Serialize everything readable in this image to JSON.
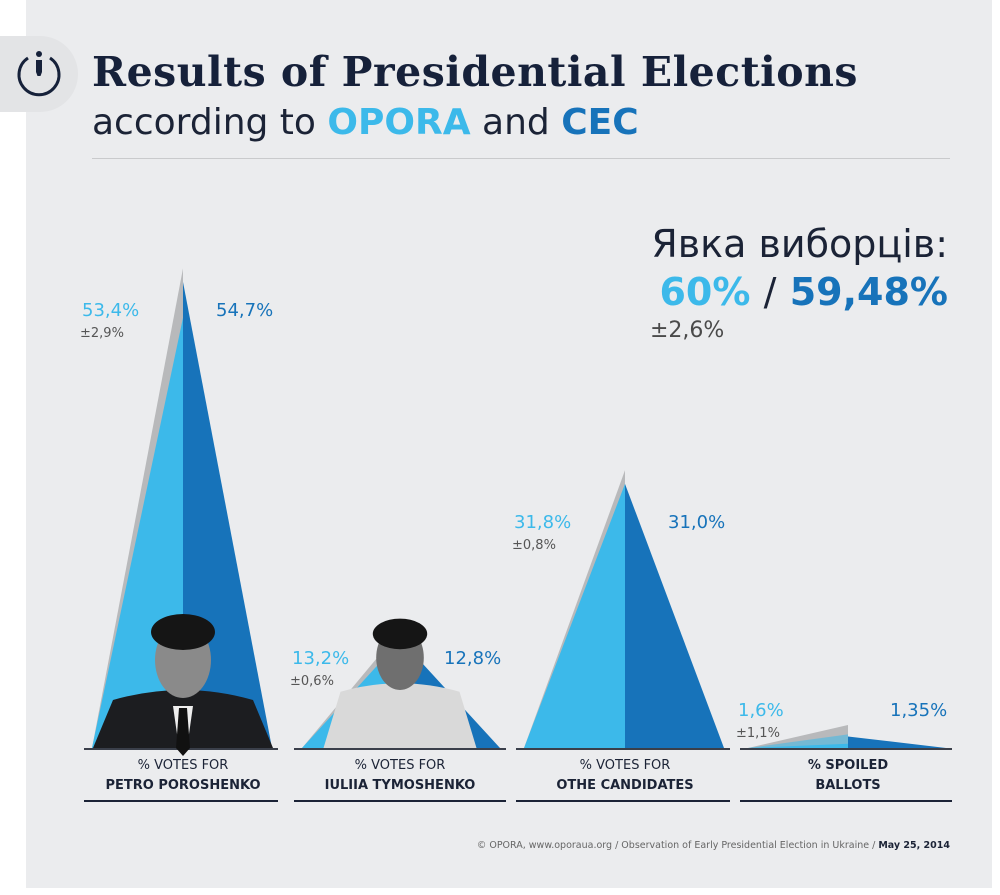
{
  "header": {
    "title": "Results of Presidential Elections",
    "subtitle_prefix": "according to",
    "subtitle_opora": "OPORA",
    "subtitle_and": "and",
    "subtitle_cec": "CEC",
    "logo_icon": "opora-power-person-icon"
  },
  "turnout": {
    "label": "Явка виборців:",
    "opora": "60%",
    "separator": "/",
    "cec": "59,48%",
    "error": "±2,6%"
  },
  "colors": {
    "opora": "#3cb9ea",
    "cec": "#1773ba",
    "error": "#b8b9bb",
    "text": "#1b2336"
  },
  "chart_data": {
    "type": "area",
    "title": "Results of Presidential Elections according to OPORA and CEC",
    "series_names": [
      "OPORA",
      "CEC"
    ],
    "categories": [
      {
        "line1": "% VOTES FOR",
        "line2": "PETRO POROSHENKO",
        "opora": 53.4,
        "opora_label": "53,4%",
        "error": 2.9,
        "error_label": "±2,9%",
        "cec": 54.7,
        "cec_label": "54,7%",
        "photo": true
      },
      {
        "line1": "% VOTES FOR",
        "line2": "IULIIA TYMOSHENKO",
        "opora": 13.2,
        "opora_label": "13,2%",
        "error": 0.6,
        "error_label": "±0,6%",
        "cec": 12.8,
        "cec_label": "12,8%",
        "photo": true
      },
      {
        "line1": "% VOTES FOR",
        "line2": "OTHE CANDIDATES",
        "opora": 31.8,
        "opora_label": "31,8%",
        "error": 0.8,
        "error_label": "±0,8%",
        "cec": 31.0,
        "cec_label": "31,0%",
        "photo": false
      },
      {
        "line1": "% SPOILED",
        "line2": "BALLOTS",
        "opora": 1.6,
        "opora_label": "1,6%",
        "error": 1.1,
        "error_label": "±1,1%",
        "cec": 1.35,
        "cec_label": "1,35%",
        "photo": false
      }
    ]
  },
  "footer": {
    "source": "© OPORA, www.oporaua.org / Observation of Early Presidential Election in Ukraine / ",
    "date": "May 25, 2014"
  }
}
